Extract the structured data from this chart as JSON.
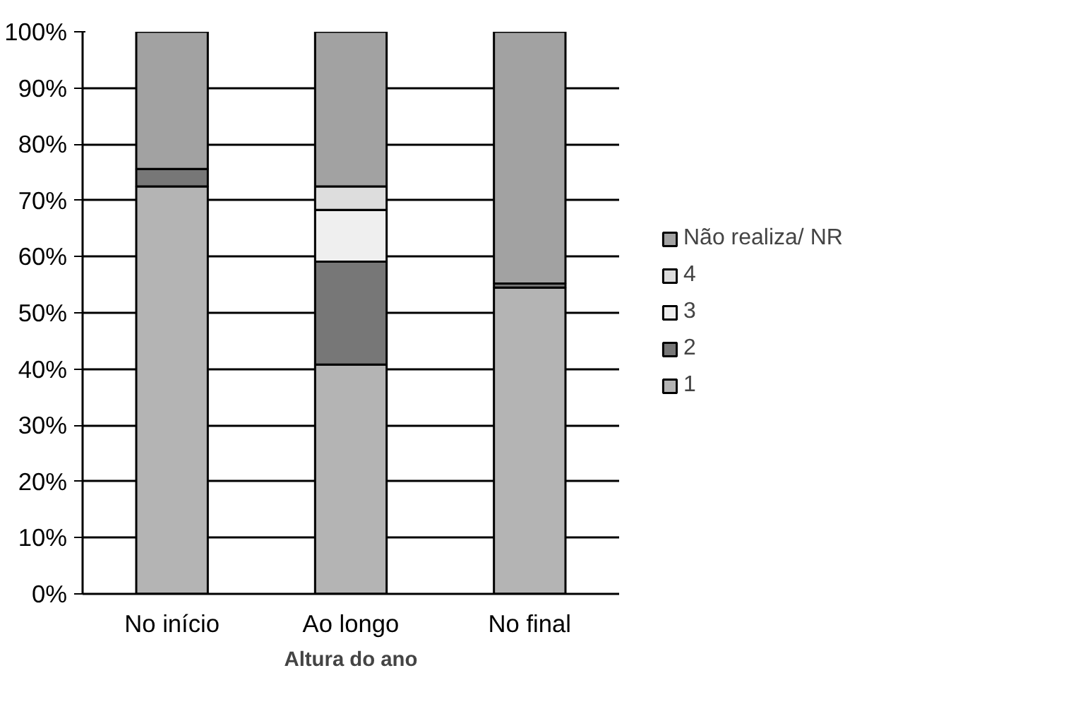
{
  "chart_data": {
    "type": "bar",
    "stacked": true,
    "xlabel": "Altura do ano",
    "categories": [
      "No início",
      "Ao longo",
      "No final"
    ],
    "series": [
      {
        "name": "1",
        "color": "#b4b4b4",
        "values": [
          72.5,
          40.8,
          54.5
        ]
      },
      {
        "name": "2",
        "color": "#777777",
        "values": [
          3.1,
          18.3,
          0.7
        ]
      },
      {
        "name": "3",
        "color": "#efefef",
        "values": [
          null,
          9.2,
          null
        ]
      },
      {
        "name": "4",
        "color": "#dddddd",
        "values": [
          null,
          4.2,
          null
        ]
      },
      {
        "name": "Não realiza/ NR",
        "color": "#a2a2a2",
        "values": [
          24.4,
          27.5,
          44.8
        ]
      }
    ],
    "ylim": [
      0,
      100
    ],
    "yticks": [
      {
        "value": 0,
        "label": "0%"
      },
      {
        "value": 10,
        "label": "10%"
      },
      {
        "value": 20,
        "label": "20%"
      },
      {
        "value": 30,
        "label": "30%"
      },
      {
        "value": 40,
        "label": "40%"
      },
      {
        "value": 50,
        "label": "50%"
      },
      {
        "value": 60,
        "label": "60%"
      },
      {
        "value": 70,
        "label": "70%"
      },
      {
        "value": 80,
        "label": "80%"
      },
      {
        "value": 90,
        "label": "90%"
      },
      {
        "value": 100,
        "label": "100%"
      }
    ],
    "grid": "y",
    "legend": "right"
  }
}
